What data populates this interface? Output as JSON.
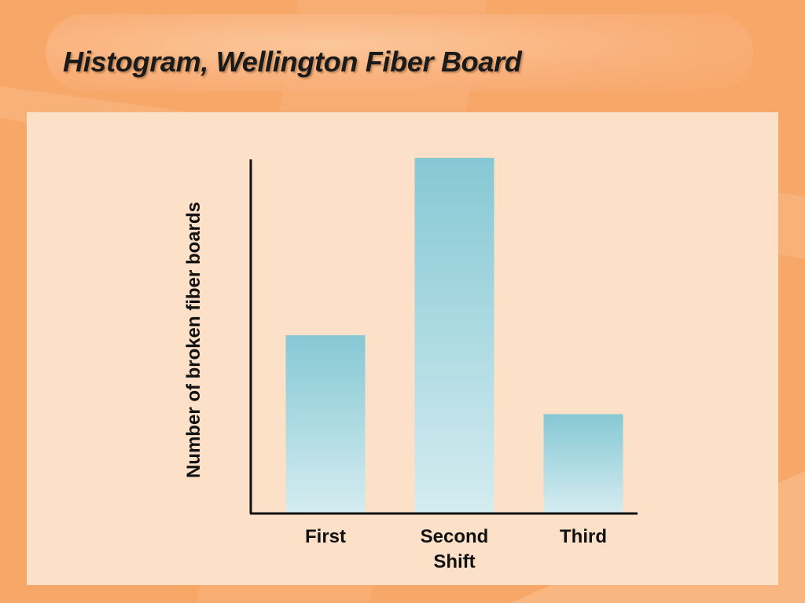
{
  "slide": {
    "title": "Histogram, Wellington Fiber Board"
  },
  "colors": {
    "background": "#f7a768",
    "panel": "#fde0c8",
    "bar_top": "#86c8d4",
    "bar_bottom": "#d4ecf0",
    "axis": "#111111"
  },
  "chart_data": {
    "type": "bar",
    "categories": [
      "First",
      "Second\nShift",
      "Third"
    ],
    "values": [
      45,
      90,
      25
    ],
    "title": "",
    "xlabel": "",
    "ylabel": "Number of broken fiber boards",
    "ylim": [
      0,
      90
    ],
    "grid": false,
    "legend": "none"
  }
}
